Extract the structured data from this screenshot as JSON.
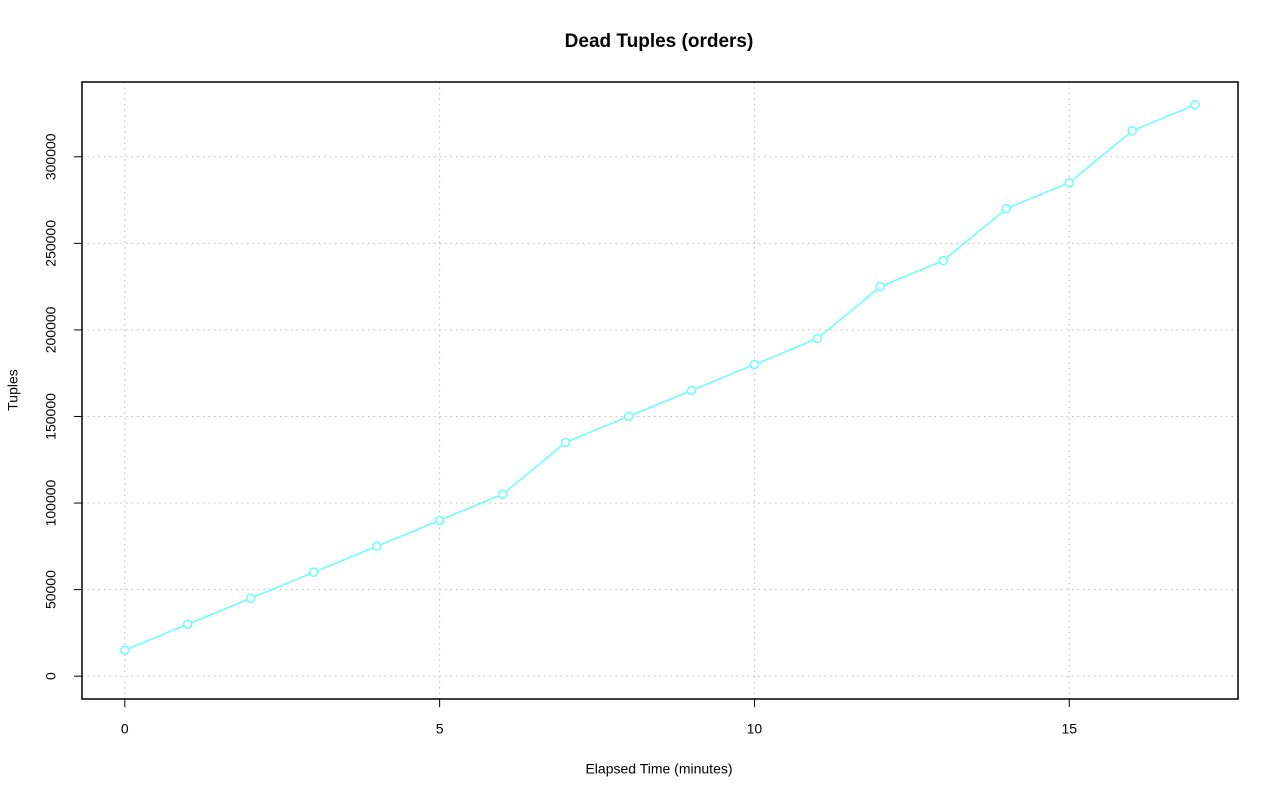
{
  "chart_data": {
    "type": "line",
    "title": "Dead Tuples (orders)",
    "x_label": "Elapsed Time (minutes)",
    "y_label": "Tuples",
    "x": [
      0,
      1,
      2,
      3,
      4,
      5,
      6,
      7,
      8,
      9,
      10,
      11,
      12,
      13,
      14,
      15,
      16,
      17
    ],
    "values": [
      15000,
      30000,
      45000,
      60000,
      75000,
      90000,
      105000,
      135000,
      150000,
      165000,
      180000,
      195000,
      225000,
      240000,
      270000,
      285000,
      315000,
      330000
    ],
    "color": "#66ffff",
    "xlim": [
      -0.68,
      17.68
    ],
    "ylim": [
      -13200,
      343200
    ],
    "xticks": [
      0,
      5,
      10,
      15
    ],
    "yticks": [
      0,
      50000,
      100000,
      150000,
      200000,
      250000,
      300000
    ],
    "grid": true
  }
}
